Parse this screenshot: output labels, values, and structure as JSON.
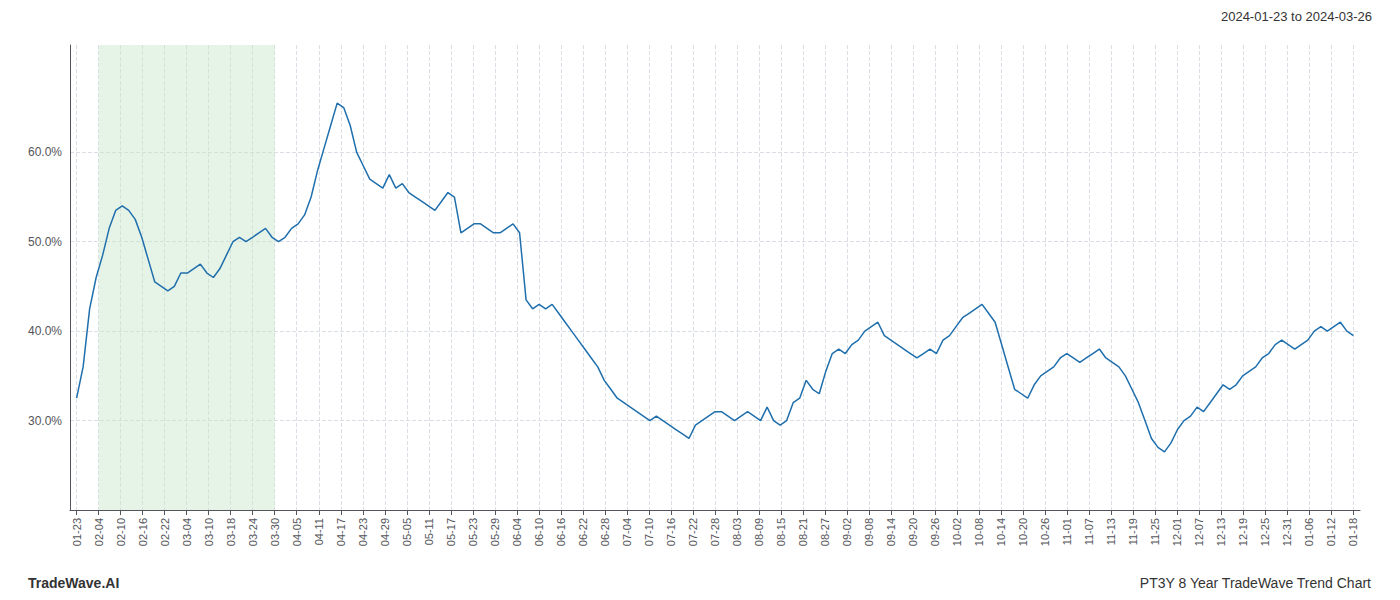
{
  "chart_data": {
    "type": "line",
    "annotations": [
      "2024-01-23 to 2024-03-26",
      "TradeWave.AI",
      "PT3Y 8 Year TradeWave Trend Chart"
    ],
    "color": "#1f6fad",
    "grid": true,
    "xlim": [
      -0.3,
      58.3
    ],
    "xticks": [
      {
        "value": 0,
        "label": "01-23"
      },
      {
        "value": 1,
        "label": "02-04"
      },
      {
        "value": 2,
        "label": "02-10"
      },
      {
        "value": 3,
        "label": "02-16"
      },
      {
        "value": 4,
        "label": "02-22"
      },
      {
        "value": 5,
        "label": "03-04"
      },
      {
        "value": 6,
        "label": "03-10"
      },
      {
        "value": 7,
        "label": "03-18"
      },
      {
        "value": 8,
        "label": "03-24"
      },
      {
        "value": 9,
        "label": "03-30"
      },
      {
        "value": 10,
        "label": "04-05"
      },
      {
        "value": 11,
        "label": "04-11"
      },
      {
        "value": 12,
        "label": "04-17"
      },
      {
        "value": 13,
        "label": "04-23"
      },
      {
        "value": 14,
        "label": "04-29"
      },
      {
        "value": 15,
        "label": "05-05"
      },
      {
        "value": 16,
        "label": "05-11"
      },
      {
        "value": 17,
        "label": "05-17"
      },
      {
        "value": 18,
        "label": "05-23"
      },
      {
        "value": 19,
        "label": "05-29"
      },
      {
        "value": 20,
        "label": "06-04"
      },
      {
        "value": 21,
        "label": "06-10"
      },
      {
        "value": 22,
        "label": "06-16"
      },
      {
        "value": 23,
        "label": "06-22"
      },
      {
        "value": 24,
        "label": "06-28"
      },
      {
        "value": 25,
        "label": "07-04"
      },
      {
        "value": 26,
        "label": "07-10"
      },
      {
        "value": 27,
        "label": "07-16"
      },
      {
        "value": 28,
        "label": "07-22"
      },
      {
        "value": 29,
        "label": "07-28"
      },
      {
        "value": 30,
        "label": "08-03"
      },
      {
        "value": 31,
        "label": "08-09"
      },
      {
        "value": 32,
        "label": "08-15"
      },
      {
        "value": 33,
        "label": "08-21"
      },
      {
        "value": 34,
        "label": "08-27"
      },
      {
        "value": 35,
        "label": "09-02"
      },
      {
        "value": 36,
        "label": "09-08"
      },
      {
        "value": 37,
        "label": "09-14"
      },
      {
        "value": 38,
        "label": "09-20"
      },
      {
        "value": 39,
        "label": "09-26"
      },
      {
        "value": 40,
        "label": "10-02"
      },
      {
        "value": 41,
        "label": "10-08"
      },
      {
        "value": 42,
        "label": "10-14"
      },
      {
        "value": 43,
        "label": "10-20"
      },
      {
        "value": 44,
        "label": "10-26"
      },
      {
        "value": 45,
        "label": "11-01"
      },
      {
        "value": 46,
        "label": "11-07"
      },
      {
        "value": 47,
        "label": "11-13"
      },
      {
        "value": 48,
        "label": "11-19"
      },
      {
        "value": 49,
        "label": "11-25"
      },
      {
        "value": 50,
        "label": "12-01"
      },
      {
        "value": 51,
        "label": "12-07"
      },
      {
        "value": 52,
        "label": "12-13"
      },
      {
        "value": 53,
        "label": "12-19"
      },
      {
        "value": 54,
        "label": "12-25"
      },
      {
        "value": 55,
        "label": "12-31"
      },
      {
        "value": 56,
        "label": "01-06"
      },
      {
        "value": 57,
        "label": "01-12"
      },
      {
        "value": 58,
        "label": "01-18"
      }
    ],
    "ylim": [
      20,
      72
    ],
    "yticks": [
      {
        "value": 30,
        "label": "30.0%"
      },
      {
        "value": 40,
        "label": "40.0%"
      },
      {
        "value": 50,
        "label": "50.0%"
      },
      {
        "value": 60,
        "label": "60.0%"
      }
    ],
    "shaded": {
      "x": [
        1,
        9
      ],
      "color": "#c8e6c9"
    },
    "x": [
      0,
      0.2959,
      0.5918,
      0.8878,
      1.1837,
      1.4796,
      1.7755,
      2.0714,
      2.3673,
      2.6633,
      2.9592,
      3.2551,
      3.551,
      3.8469,
      4.1429,
      4.4388,
      4.7347,
      5.0306,
      5.3265,
      5.6224,
      5.9184,
      6.2143,
      6.5102,
      6.8061,
      7.102,
      7.398,
      7.6939,
      7.9898,
      8.2857,
      8.5816,
      8.8776,
      9.1735,
      9.4694,
      9.7653,
      10.0612,
      10.3571,
      10.6531,
      10.949,
      11.2449,
      11.5408,
      11.8367,
      12.1327,
      12.4286,
      12.7245,
      13.0204,
      13.3163,
      13.6122,
      13.9082,
      14.2041,
      14.5,
      14.7959,
      15.0918,
      15.3878,
      15.6837,
      15.9796,
      16.2755,
      16.5714,
      16.8673,
      17.1633,
      17.4592,
      17.7551,
      18.051,
      18.3469,
      18.6429,
      18.9388,
      19.2347,
      19.5306,
      19.8265,
      20.1224,
      20.4184,
      20.7143,
      21.0102,
      21.3061,
      21.602,
      21.898,
      22.1939,
      22.4898,
      22.7857,
      23.0816,
      23.3776,
      23.6735,
      23.9694,
      24.2653,
      24.5612,
      24.8571,
      25.1531,
      25.449,
      25.7449,
      26.0408,
      26.3367,
      26.6327,
      26.9286,
      27.2245,
      27.5204,
      27.8163,
      28.1122,
      28.4082,
      28.7041,
      29,
      29.2959,
      29.5918,
      29.8878,
      30.1837,
      30.4796,
      30.7755,
      31.0714,
      31.3673,
      31.6633,
      31.9592,
      32.2551,
      32.551,
      32.8469,
      33.1429,
      33.4388,
      33.7347,
      34.0306,
      34.3265,
      34.6224,
      34.9184,
      35.2143,
      35.5102,
      35.8061,
      36.102,
      36.398,
      36.6939,
      36.9898,
      37.2857,
      37.5816,
      37.8776,
      38.1735,
      38.4694,
      38.7653,
      39.0612,
      39.3571,
      39.6531,
      39.949,
      40.2449,
      40.5408,
      40.8367,
      41.1327,
      41.4286,
      41.7245,
      42.0204,
      42.3163,
      42.6122,
      42.9082,
      43.2041,
      43.5,
      43.7959,
      44.0918,
      44.3878,
      44.6837,
      44.9796,
      45.2755,
      45.5714,
      45.8673,
      46.1633,
      46.4592,
      46.7551,
      47.051,
      47.3469,
      47.6429,
      47.9388,
      48.2347,
      48.5306,
      48.8265,
      49.1224,
      49.4184,
      49.7143,
      50.0102,
      50.3061,
      50.602,
      50.898,
      51.1939,
      51.4898,
      51.7857,
      52.0816,
      52.3776,
      52.6735,
      52.9694,
      53.2653,
      53.5612,
      53.8571,
      54.1531,
      54.449,
      54.7449,
      55.0408,
      55.3367,
      55.6327,
      55.9286,
      56.2245,
      56.5204,
      56.8163,
      57.1122,
      57.4082,
      57.7041,
      58
    ],
    "values": [
      32.5,
      36.0,
      42.5,
      46.0,
      48.5,
      51.5,
      53.5,
      54.0,
      53.5,
      52.5,
      50.5,
      48.0,
      45.5,
      45.0,
      44.5,
      45.0,
      46.5,
      46.5,
      47.0,
      47.5,
      46.5,
      46.0,
      47.0,
      48.5,
      50.0,
      50.5,
      50.0,
      50.5,
      51.0,
      51.5,
      50.5,
      50.0,
      50.5,
      51.5,
      52.0,
      53.0,
      55.0,
      58.0,
      60.5,
      63.0,
      65.5,
      65.0,
      63.0,
      60.0,
      58.5,
      57.0,
      56.5,
      56.0,
      57.5,
      56.0,
      56.5,
      55.5,
      55.0,
      54.5,
      54.0,
      53.5,
      54.5,
      55.5,
      55.0,
      51.0,
      51.5,
      52.0,
      52.0,
      51.5,
      51.0,
      51.0,
      51.5,
      52.0,
      51.0,
      43.5,
      42.5,
      43.0,
      42.5,
      43.0,
      42.0,
      41.0,
      40.0,
      39.0,
      38.0,
      37.0,
      36.0,
      34.5,
      33.5,
      32.5,
      32.0,
      31.5,
      31.0,
      30.5,
      30.0,
      30.5,
      30.0,
      29.5,
      29.0,
      28.5,
      28.0,
      29.5,
      30.0,
      30.5,
      31.0,
      31.0,
      30.5,
      30.0,
      30.5,
      31.0,
      30.5,
      30.0,
      31.5,
      30.0,
      29.5,
      30.0,
      32.0,
      32.5,
      34.5,
      33.5,
      33.0,
      35.5,
      37.5,
      38.0,
      37.5,
      38.5,
      39.0,
      40.0,
      40.5,
      41.0,
      39.5,
      39.0,
      38.5,
      38.0,
      37.5,
      37.0,
      37.5,
      38.0,
      37.5,
      39.0,
      39.5,
      40.5,
      41.5,
      42.0,
      42.5,
      43.0,
      42.0,
      41.0,
      38.5,
      36.0,
      33.5,
      33.0,
      32.5,
      34.0,
      35.0,
      35.5,
      36.0,
      37.0,
      37.5,
      37.0,
      36.5,
      37.0,
      37.5,
      38.0,
      37.0,
      36.5,
      36.0,
      35.0,
      33.5,
      32.0,
      30.0,
      28.0,
      27.0,
      26.5,
      27.5,
      29.0,
      30.0,
      30.5,
      31.5,
      31.0,
      32.0,
      33.0,
      34.0,
      33.5,
      34.0,
      35.0,
      35.5,
      36.0,
      37.0,
      37.5,
      38.5,
      39.0,
      38.5,
      38.0,
      38.5,
      39.0,
      40.0,
      40.5,
      40.0,
      40.5,
      41.0,
      40.0,
      39.5
    ]
  }
}
